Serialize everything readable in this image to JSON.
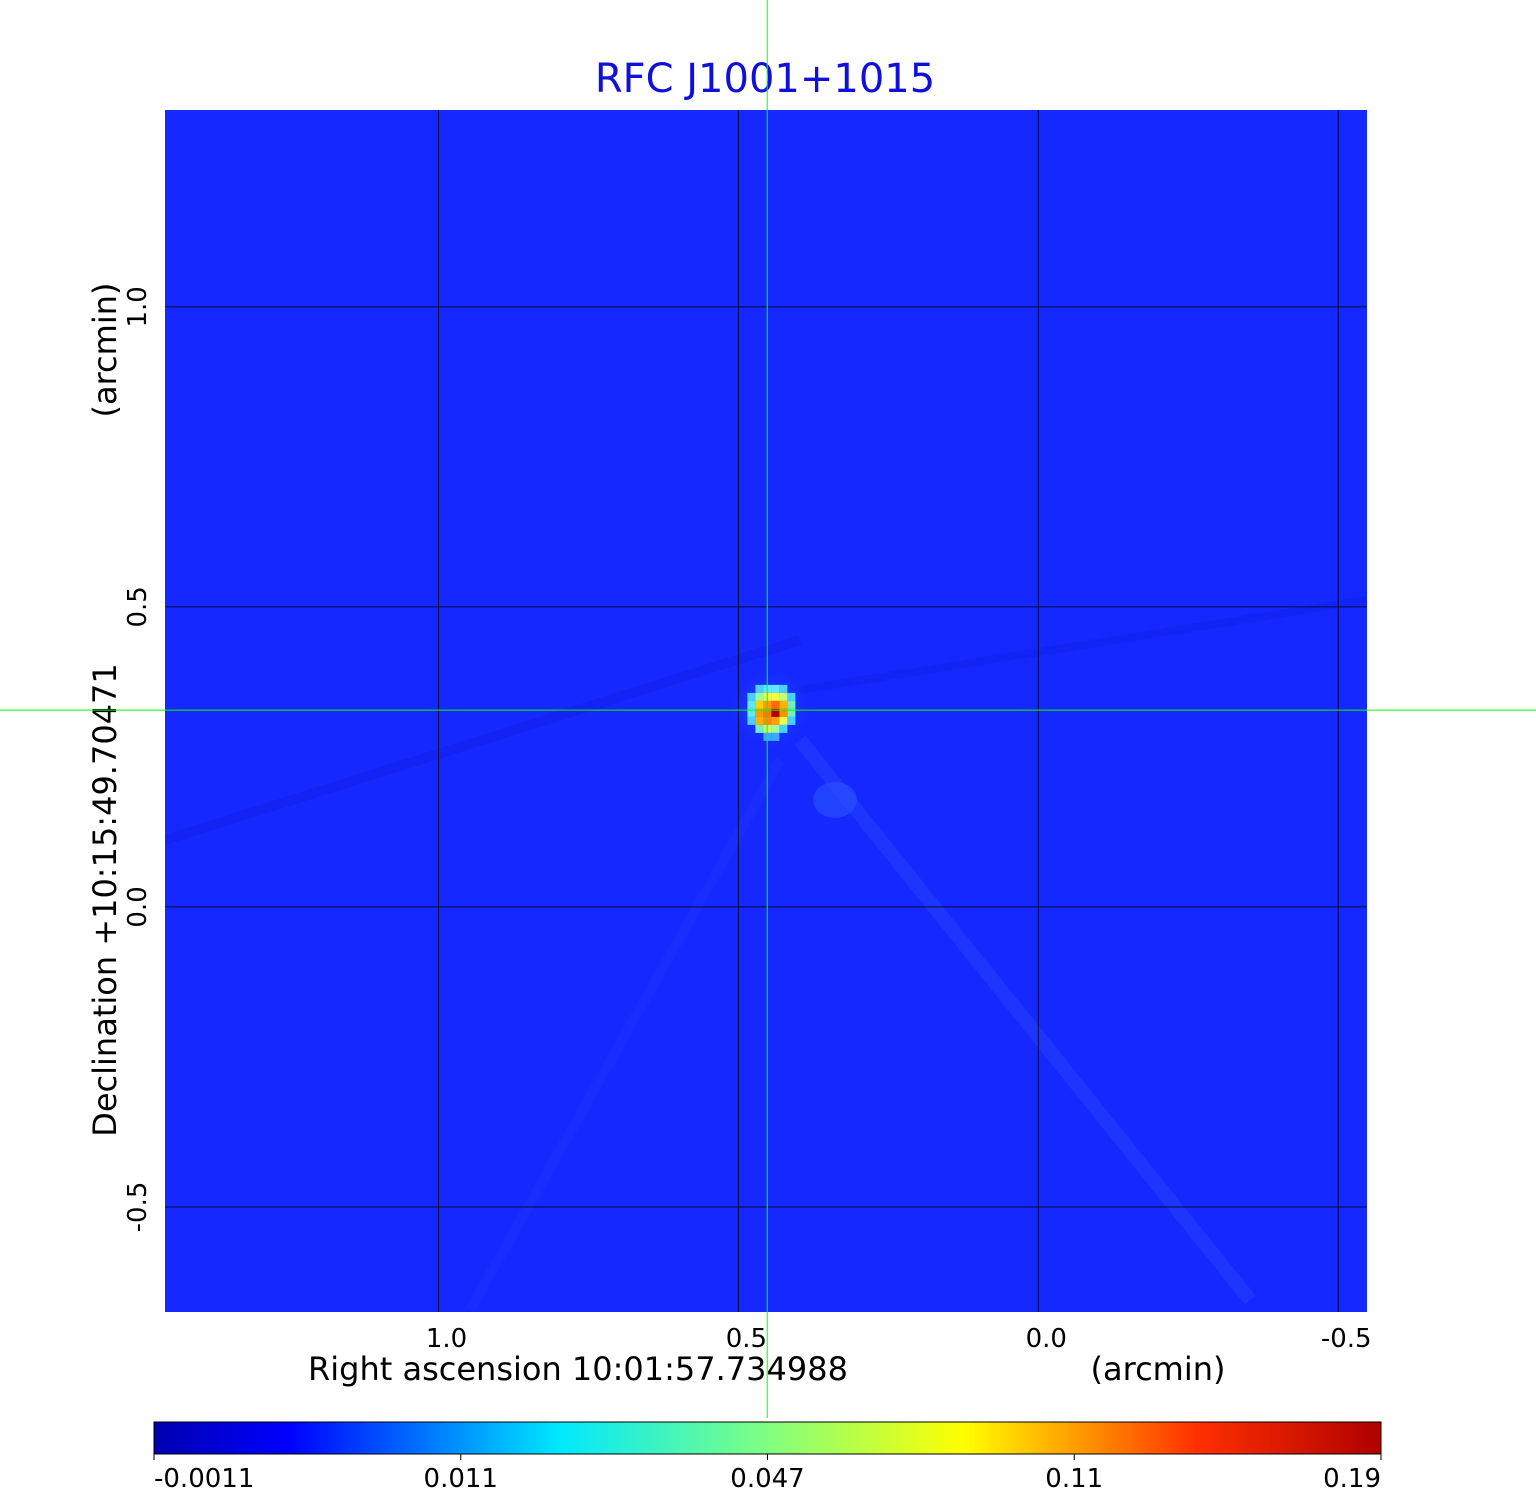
{
  "chart_data": {
    "type": "heatmap",
    "title": "RFC J1001+1015",
    "xlabel": "Right ascension  10:01:57.734988",
    "xunit": "(arcmin)",
    "ylabel": "Declination  +10:15:49.70471",
    "yunit": "(arcmin)",
    "x_ticks": [
      "1.0",
      "0.5",
      "0.0",
      "-0.5"
    ],
    "x_tick_values": [
      1.0,
      0.5,
      0.0,
      -0.5
    ],
    "y_ticks": [
      "1.0",
      "0.5",
      "0.0",
      "-0.5"
    ],
    "y_tick_values": [
      1.0,
      0.5,
      0.0,
      -0.5
    ],
    "xlim": [
      1.456,
      -0.548
    ],
    "ylim": [
      -0.675,
      1.328
    ],
    "grid": true,
    "colormap": "jet",
    "colorbar": {
      "orientation": "horizontal",
      "position": "bottom",
      "ticks": [
        "-0.0011",
        "0.011",
        "0.047",
        "0.11",
        "0.19"
      ],
      "range": [
        -0.0011,
        0.19
      ]
    },
    "peak": {
      "x": 0.445,
      "y": 0.33,
      "value": 0.19
    },
    "crosshair": {
      "x": 0.452,
      "y": 0.328,
      "color": "#00ff00"
    }
  }
}
